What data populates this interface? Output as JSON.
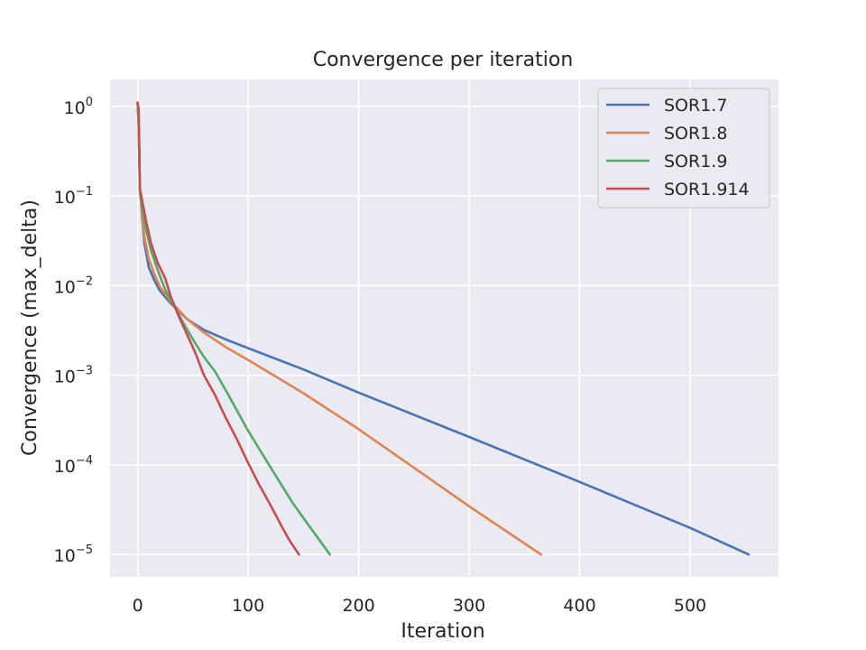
{
  "chart_data": {
    "type": "line",
    "title": "Convergence per iteration",
    "xlabel": "Iteration",
    "ylabel": "Convergence (max_delta)",
    "xlim": [
      -25,
      580
    ],
    "ylim_log10": [
      -5.25,
      0.3
    ],
    "yscale": "log",
    "grid": true,
    "legend_placement": "top-right",
    "background": "#eaeaf2",
    "grid_color": "#ffffff",
    "x_ticks": [
      0,
      100,
      200,
      300,
      400,
      500
    ],
    "y_ticks": [
      {
        "base": "10",
        "exp": "0",
        "value": 1
      },
      {
        "base": "10",
        "exp": "−1",
        "value": 0.1
      },
      {
        "base": "10",
        "exp": "−2",
        "value": 0.01
      },
      {
        "base": "10",
        "exp": "−3",
        "value": 0.001
      },
      {
        "base": "10",
        "exp": "−4",
        "value": 0.0001
      },
      {
        "base": "10",
        "exp": "−5",
        "value": 1e-05
      }
    ],
    "series": [
      {
        "name": "SOR1.7",
        "color": "#4c72b0",
        "points": [
          [
            0,
            1.1
          ],
          [
            1,
            0.6
          ],
          [
            2,
            0.12
          ],
          [
            4,
            0.06
          ],
          [
            6,
            0.03
          ],
          [
            10,
            0.016
          ],
          [
            15,
            0.0115
          ],
          [
            20,
            0.0088
          ],
          [
            30,
            0.0063
          ],
          [
            45,
            0.0042
          ],
          [
            60,
            0.0032
          ],
          [
            80,
            0.0025
          ],
          [
            100,
            0.002
          ],
          [
            150,
            0.00116
          ],
          [
            200,
            0.00064
          ],
          [
            300,
            0.000205
          ],
          [
            400,
            6.45e-05
          ],
          [
            500,
            1.98e-05
          ],
          [
            553,
            1e-05
          ]
        ]
      },
      {
        "name": "SOR1.8",
        "color": "#dd8452",
        "points": [
          [
            0,
            1.1
          ],
          [
            1,
            0.6
          ],
          [
            2,
            0.12
          ],
          [
            4,
            0.065
          ],
          [
            6,
            0.035
          ],
          [
            10,
            0.02
          ],
          [
            15,
            0.0135
          ],
          [
            20,
            0.0098
          ],
          [
            30,
            0.0066
          ],
          [
            45,
            0.0042
          ],
          [
            60,
            0.003
          ],
          [
            80,
            0.00205
          ],
          [
            100,
            0.00148
          ],
          [
            150,
            0.00063
          ],
          [
            200,
            0.00025
          ],
          [
            300,
            3.45e-05
          ],
          [
            365,
            1e-05
          ]
        ]
      },
      {
        "name": "SOR1.9",
        "color": "#55a868",
        "points": [
          [
            0,
            1.1
          ],
          [
            1,
            0.6
          ],
          [
            2,
            0.11
          ],
          [
            5,
            0.065
          ],
          [
            8,
            0.04
          ],
          [
            12,
            0.025
          ],
          [
            18,
            0.015
          ],
          [
            25,
            0.009
          ],
          [
            32,
            0.0062
          ],
          [
            40,
            0.0041
          ],
          [
            50,
            0.0025
          ],
          [
            60,
            0.0016
          ],
          [
            70,
            0.0011
          ],
          [
            85,
            0.00052
          ],
          [
            100,
            0.00024
          ],
          [
            120,
            9.5e-05
          ],
          [
            140,
            3.8e-05
          ],
          [
            160,
            1.72e-05
          ],
          [
            174,
            1e-05
          ]
        ]
      },
      {
        "name": "SOR1.914",
        "color": "#c44e52",
        "points": [
          [
            0,
            1.1
          ],
          [
            1,
            0.9
          ],
          [
            2,
            0.12
          ],
          [
            4,
            0.09
          ],
          [
            8,
            0.05
          ],
          [
            12,
            0.03
          ],
          [
            18,
            0.018
          ],
          [
            25,
            0.012
          ],
          [
            30,
            0.0075
          ],
          [
            38,
            0.0043
          ],
          [
            45,
            0.0028
          ],
          [
            52,
            0.0018
          ],
          [
            60,
            0.001
          ],
          [
            70,
            0.0006
          ],
          [
            80,
            0.00033
          ],
          [
            90,
            0.00019
          ],
          [
            100,
            0.000105
          ],
          [
            110,
            6e-05
          ],
          [
            120,
            3.6e-05
          ],
          [
            130,
            2.1e-05
          ],
          [
            138,
            1.4e-05
          ],
          [
            146,
            1e-05
          ]
        ]
      }
    ]
  }
}
